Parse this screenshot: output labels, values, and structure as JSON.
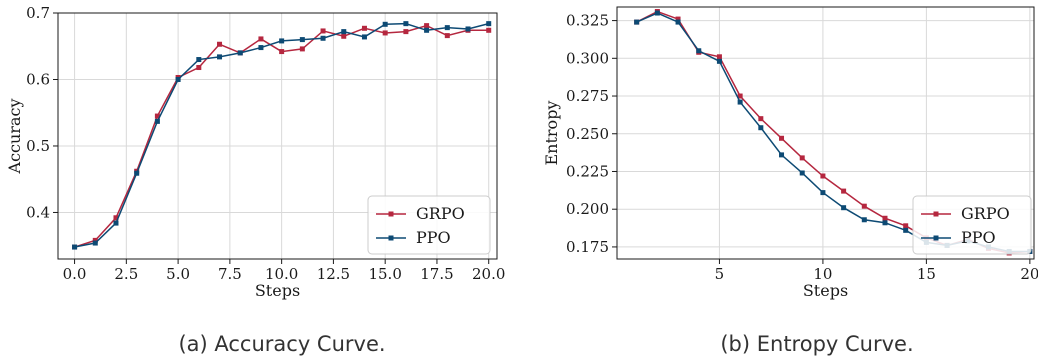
{
  "chart_data": [
    {
      "type": "line",
      "caption": "(a) Accuracy Curve.",
      "xlabel": "Steps",
      "ylabel": "Accuracy",
      "xlim": [
        -0.8,
        20.4
      ],
      "ylim": [
        0.33,
        0.7
      ],
      "xticks": [
        0,
        2.5,
        5,
        7.5,
        10,
        12.5,
        15,
        17.5,
        20
      ],
      "xtick_labels": [
        "0.0",
        "2.5",
        "5.0",
        "7.5",
        "10.0",
        "12.5",
        "15.0",
        "17.5",
        "20.0"
      ],
      "yticks": [
        0.4,
        0.5,
        0.6,
        0.7
      ],
      "ytick_labels": [
        "0.4",
        "0.5",
        "0.6",
        "0.7"
      ],
      "grid": true,
      "legend_position": "lower-right",
      "x": [
        0,
        1,
        2,
        3,
        4,
        5,
        6,
        7,
        8,
        9,
        10,
        11,
        12,
        13,
        14,
        15,
        16,
        17,
        18,
        19,
        20
      ],
      "series": [
        {
          "name": "GRPO",
          "color": "#b5273f",
          "values": [
            0.348,
            0.358,
            0.392,
            0.462,
            0.545,
            0.603,
            0.618,
            0.653,
            0.64,
            0.661,
            0.642,
            0.646,
            0.673,
            0.665,
            0.677,
            0.67,
            0.672,
            0.681,
            0.666,
            0.674,
            0.674
          ]
        },
        {
          "name": "PPO",
          "color": "#0d4a74",
          "values": [
            0.348,
            0.354,
            0.384,
            0.459,
            0.537,
            0.6,
            0.63,
            0.634,
            0.64,
            0.648,
            0.658,
            0.66,
            0.662,
            0.672,
            0.664,
            0.683,
            0.684,
            0.674,
            0.678,
            0.676,
            0.684
          ]
        }
      ]
    },
    {
      "type": "line",
      "caption": "(b) Entropy Curve.",
      "xlabel": "Steps",
      "ylabel": "Entropy",
      "xlim": [
        0.05,
        20.2
      ],
      "ylim": [
        0.167,
        0.334
      ],
      "xticks": [
        5,
        10,
        15,
        20
      ],
      "xtick_labels": [
        "5",
        "10",
        "15",
        "20"
      ],
      "yticks": [
        0.175,
        0.2,
        0.225,
        0.25,
        0.275,
        0.3,
        0.325
      ],
      "ytick_labels": [
        "0.175",
        "0.200",
        "0.225",
        "0.250",
        "0.275",
        "0.300",
        "0.325"
      ],
      "grid": true,
      "legend_position": "lower-right",
      "x": [
        1,
        2,
        3,
        4,
        5,
        6,
        7,
        8,
        9,
        10,
        11,
        12,
        13,
        14,
        15,
        16,
        17,
        18,
        19,
        20
      ],
      "series": [
        {
          "name": "GRPO",
          "color": "#b5273f",
          "values": [
            0.324,
            0.331,
            0.326,
            0.304,
            0.301,
            0.275,
            0.26,
            0.247,
            0.234,
            0.222,
            0.212,
            0.202,
            0.194,
            0.189,
            0.181,
            0.176,
            0.18,
            0.174,
            0.171,
            0.172
          ]
        },
        {
          "name": "PPO",
          "color": "#0d4a74",
          "values": [
            0.324,
            0.33,
            0.324,
            0.305,
            0.298,
            0.271,
            0.254,
            0.236,
            0.224,
            0.211,
            0.201,
            0.193,
            0.191,
            0.186,
            0.178,
            0.176,
            0.179,
            0.175,
            0.172,
            0.172
          ]
        }
      ]
    }
  ]
}
